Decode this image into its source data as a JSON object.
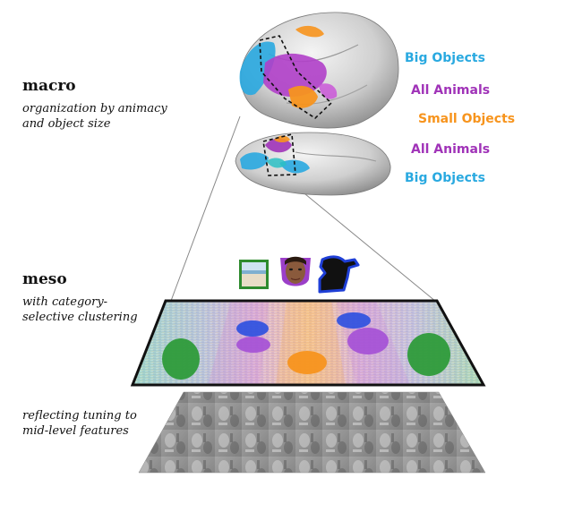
{
  "levels": {
    "macro": {
      "title": "macro",
      "line1": "organization by animacy",
      "line2": "and object size"
    },
    "meso": {
      "title": "meso",
      "line1": "with category-",
      "line2": "selective clustering"
    },
    "micro": {
      "line1": "reflecting tuning to",
      "line2": "mid-level features"
    }
  },
  "categories": {
    "big_objects_top": "Big Objects",
    "all_animals_top": "All Animals",
    "small_objects": "Small Objects",
    "all_animals_bottom": "All Animals",
    "big_objects_bottom": "Big Objects"
  },
  "colors": {
    "big_objects": "#29a9e0",
    "all_animals": "#a033b8",
    "small_objects": "#f7941d",
    "scene": "#2e8b2e",
    "face": "#9b3fc8",
    "body": "#1f3fd6"
  },
  "icons": [
    "scene-photo-icon",
    "face-photo-icon",
    "body-silhouette-icon"
  ]
}
